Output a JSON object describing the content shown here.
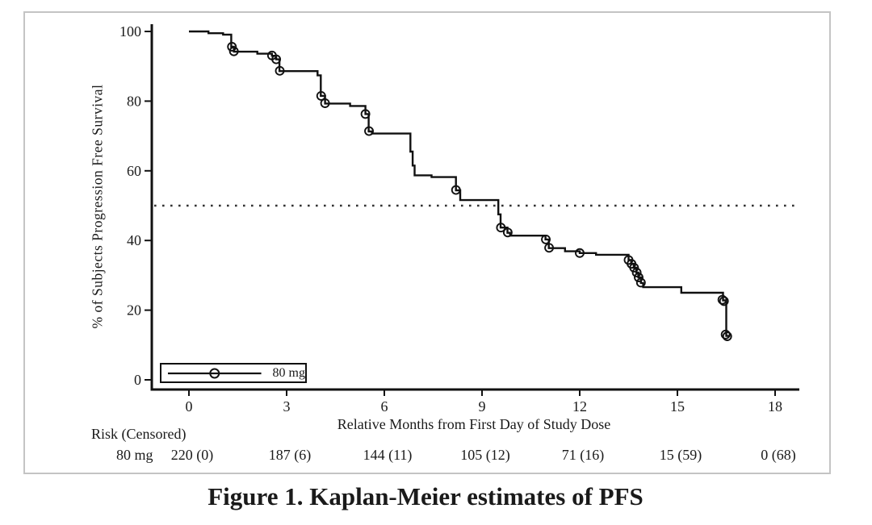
{
  "figure": {
    "title": "Figure 1. Kaplan-Meier estimates of PFS"
  },
  "colors": {
    "curve": "#111111",
    "text": "#1a1a1a",
    "frame_border": "#c4c4c4"
  },
  "chart_data": {
    "type": "line",
    "subtype": "kaplan-meier-step",
    "title": "",
    "xlabel": "Relative Months from First Day of Study Dose",
    "ylabel": "% of Subjects Progression Free Survival",
    "xlim": [
      -1.15,
      18.75
    ],
    "ylim": [
      0,
      100
    ],
    "x_ticks": [
      0,
      3,
      6,
      9,
      12,
      15,
      18
    ],
    "y_ticks": [
      0,
      20,
      40,
      60,
      80,
      100
    ],
    "grid": false,
    "median_reference_line_y": 50,
    "legend": {
      "position": "bottom-left",
      "entries": [
        {
          "label": "80 mg",
          "marker": "circle-on-line"
        }
      ]
    },
    "series": [
      {
        "name": "80 mg",
        "steps": [
          [
            0,
            100
          ],
          [
            0.6,
            99.5
          ],
          [
            1.05,
            99.1
          ],
          [
            1.3,
            95.6
          ],
          [
            1.38,
            94.2
          ],
          [
            2.1,
            93.6
          ],
          [
            2.55,
            93.0
          ],
          [
            2.68,
            92.0
          ],
          [
            2.78,
            88.6
          ],
          [
            3.95,
            87.4
          ],
          [
            4.05,
            81.5
          ],
          [
            4.18,
            79.3
          ],
          [
            4.95,
            78.6
          ],
          [
            5.42,
            76.3
          ],
          [
            5.52,
            71.3
          ],
          [
            5.62,
            70.7
          ],
          [
            6.8,
            65.5
          ],
          [
            6.87,
            61.5
          ],
          [
            6.93,
            58.7
          ],
          [
            7.45,
            58.2
          ],
          [
            8.2,
            54.4
          ],
          [
            8.33,
            51.6
          ],
          [
            9.5,
            47.5
          ],
          [
            9.57,
            43.7
          ],
          [
            9.78,
            42.2
          ],
          [
            9.86,
            41.4
          ],
          [
            10.95,
            40.3
          ],
          [
            11.05,
            37.8
          ],
          [
            11.55,
            36.9
          ],
          [
            12.0,
            36.4
          ],
          [
            12.5,
            35.9
          ],
          [
            13.5,
            34.4
          ],
          [
            13.58,
            33.3
          ],
          [
            13.66,
            32.2
          ],
          [
            13.74,
            30.8
          ],
          [
            13.8,
            29.4
          ],
          [
            13.88,
            27.8
          ],
          [
            13.95,
            26.6
          ],
          [
            15.12,
            25.0
          ],
          [
            16.4,
            22.8
          ],
          [
            16.5,
            12.6
          ],
          [
            16.62,
            12.6
          ]
        ],
        "censor_marks": [
          [
            1.32,
            95.6
          ],
          [
            1.38,
            94.3
          ],
          [
            2.55,
            93.1
          ],
          [
            2.68,
            92.0
          ],
          [
            2.79,
            88.7
          ],
          [
            4.06,
            81.5
          ],
          [
            4.18,
            79.4
          ],
          [
            5.42,
            76.3
          ],
          [
            5.53,
            71.4
          ],
          [
            8.2,
            54.5
          ],
          [
            9.58,
            43.7
          ],
          [
            9.79,
            42.3
          ],
          [
            10.96,
            40.3
          ],
          [
            11.06,
            37.9
          ],
          [
            12.0,
            36.4
          ],
          [
            13.5,
            34.4
          ],
          [
            13.59,
            33.3
          ],
          [
            13.67,
            32.2
          ],
          [
            13.75,
            30.8
          ],
          [
            13.81,
            29.4
          ],
          [
            13.88,
            27.9
          ],
          [
            16.38,
            23.0
          ],
          [
            16.43,
            22.6
          ],
          [
            16.48,
            13.0
          ],
          [
            16.53,
            12.5
          ]
        ]
      }
    ],
    "risk_table": {
      "header": "Risk (Censored)",
      "row_label": "80 mg",
      "times": [
        0,
        3,
        6,
        9,
        12,
        15,
        18
      ],
      "values": [
        "220 (0)",
        "187 (6)",
        "144 (11)",
        "105 (12)",
        "71 (16)",
        "15 (59)",
        "0 (68)"
      ]
    }
  }
}
